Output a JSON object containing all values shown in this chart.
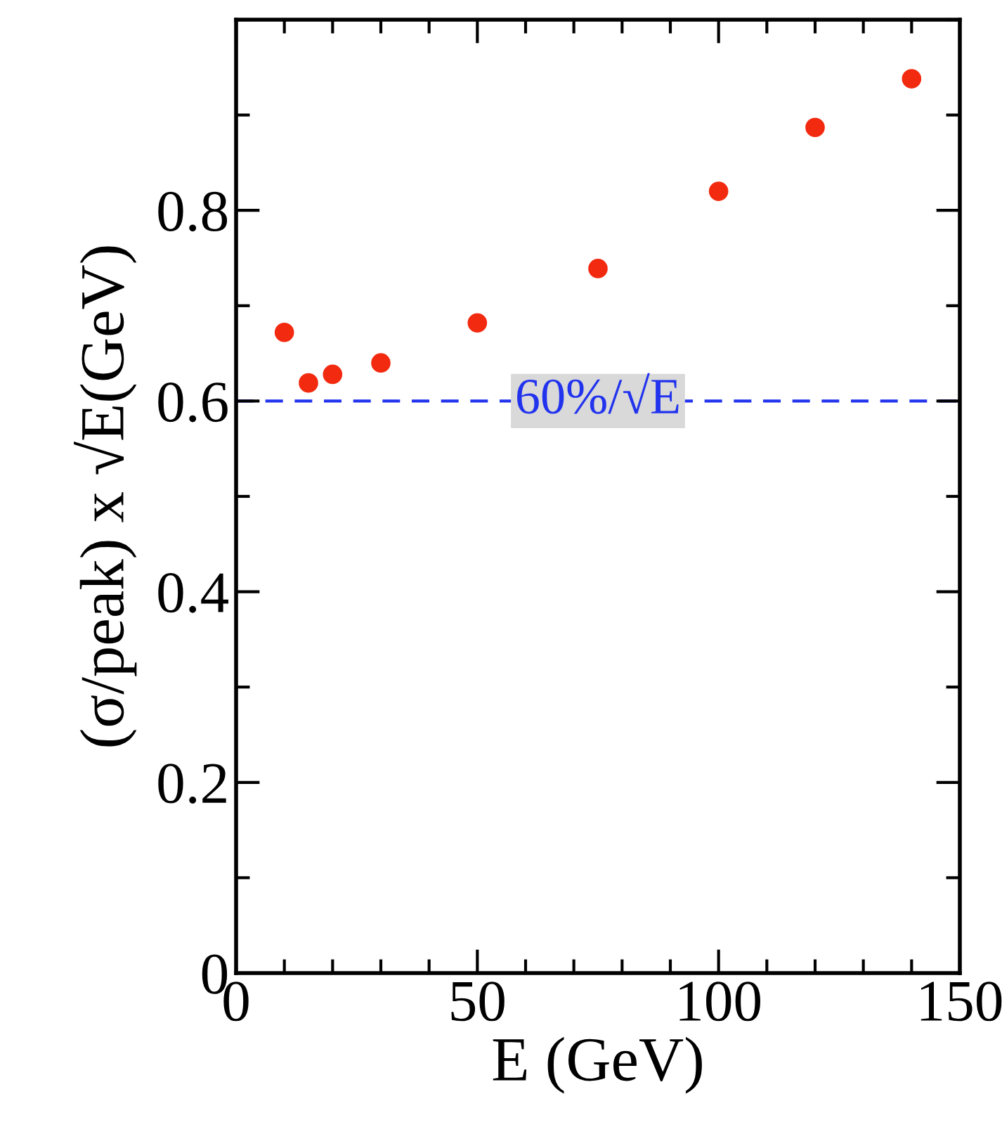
{
  "chart_data": {
    "type": "scatter",
    "xlabel": "E (GeV)",
    "ylabel": "(σ/peak) x √E(GeV)",
    "x": [
      10,
      15,
      20,
      30,
      50,
      75,
      100,
      120,
      140
    ],
    "series": [
      {
        "color": "#f22a10",
        "values": [
          0.672,
          0.619,
          0.628,
          0.64,
          0.682,
          0.739,
          0.82,
          0.887,
          0.938
        ]
      }
    ],
    "marker": "circle",
    "xlim": [
      0,
      150
    ],
    "ylim": [
      0,
      1.0
    ],
    "xticks": [
      0,
      {
        "value": 10,
        "label": null
      },
      {
        "value": 20,
        "label": null
      },
      {
        "value": 30,
        "label": null
      },
      {
        "value": 40,
        "label": null
      },
      50,
      {
        "value": 60,
        "label": null
      },
      {
        "value": 70,
        "label": null
      },
      {
        "value": 80,
        "label": null
      },
      {
        "value": 90,
        "label": null
      },
      100,
      {
        "value": 110,
        "label": null
      },
      {
        "value": 120,
        "label": null
      },
      {
        "value": 130,
        "label": null
      },
      {
        "value": 140,
        "label": null
      },
      150
    ],
    "yticks": [
      0,
      {
        "value": 0.1,
        "label": null
      },
      0.2,
      {
        "value": 0.3,
        "label": null
      },
      0.4,
      {
        "value": 0.5,
        "label": null
      },
      0.6,
      {
        "value": 0.7,
        "label": null
      },
      0.8,
      {
        "value": 0.9,
        "label": null
      },
      {
        "value": 1.0,
        "label": null
      }
    ],
    "ref_lines": [
      {
        "axis": "y",
        "value": 0.6,
        "label": "60%/√E",
        "color": "#2233ee",
        "line_style": "dashed"
      }
    ],
    "grid": false,
    "legend": false
  }
}
